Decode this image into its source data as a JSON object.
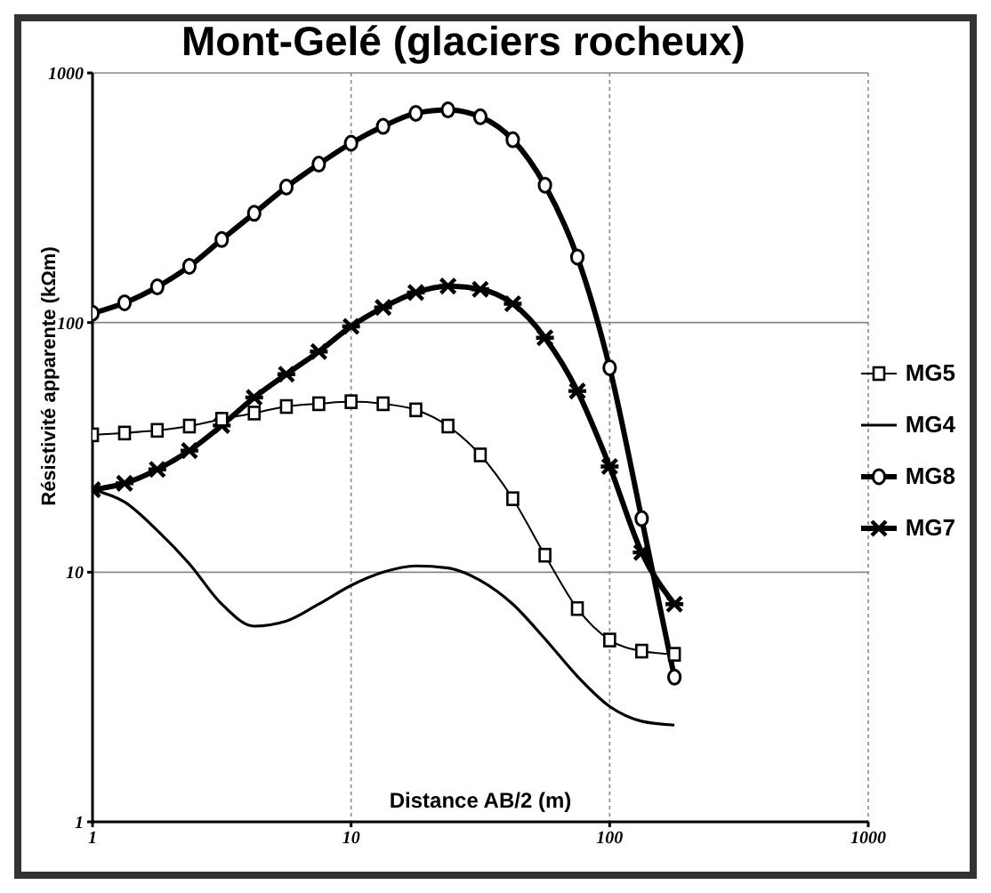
{
  "chart_data": {
    "type": "line",
    "title": "Mont-Gelé (glaciers rocheux)",
    "xlabel": "Distance AB/2 (m)",
    "ylabel": "Résistivité apparente (kΩm)",
    "x": [
      1,
      1.33,
      1.78,
      2.37,
      3.16,
      4.22,
      5.62,
      7.5,
      10,
      13.3,
      17.8,
      23.7,
      31.6,
      42.2,
      56.2,
      75,
      100,
      133,
      178
    ],
    "series": [
      {
        "name": "MG5",
        "color": "#000000",
        "marker": "square",
        "values": [
          35.5,
          36.1,
          37,
          38.5,
          41,
          43.4,
          46.1,
          47.3,
          48.2,
          47.3,
          44.7,
          38.5,
          29.5,
          19.7,
          11.7,
          7.15,
          5.35,
          4.83,
          4.69
        ]
      },
      {
        "name": "MG4",
        "color": "#000000",
        "marker": "none",
        "values": [
          21.4,
          19.1,
          14.7,
          10.8,
          7.45,
          6.08,
          6.37,
          7.45,
          8.85,
          10,
          10.6,
          10.4,
          9.27,
          7.45,
          5.41,
          3.83,
          2.9,
          2.53,
          2.44
        ]
      },
      {
        "name": "MG8",
        "color": "#000000",
        "marker": "circle",
        "values": [
          109,
          120,
          139,
          168,
          215,
          274,
          349,
          431,
          523,
          611,
          689,
          711,
          667,
          540,
          355,
          183,
          65.9,
          16.4,
          3.8
        ]
      },
      {
        "name": "MG7",
        "color": "#000000",
        "marker": "cross",
        "values": [
          21.4,
          22.7,
          25.8,
          30.7,
          38.7,
          50.1,
          62.1,
          76.5,
          96.5,
          115,
          132,
          140,
          136,
          119,
          86.9,
          53.2,
          26.5,
          12,
          7.45
        ]
      }
    ],
    "log": "xy",
    "xlim": [
      1,
      1000
    ],
    "ylim": [
      1,
      1000
    ],
    "xticks": [
      1,
      10,
      100,
      1000
    ],
    "yticks": [
      1,
      10,
      100,
      1000
    ],
    "grid": true,
    "legend": "right",
    "line_style": "solid"
  }
}
